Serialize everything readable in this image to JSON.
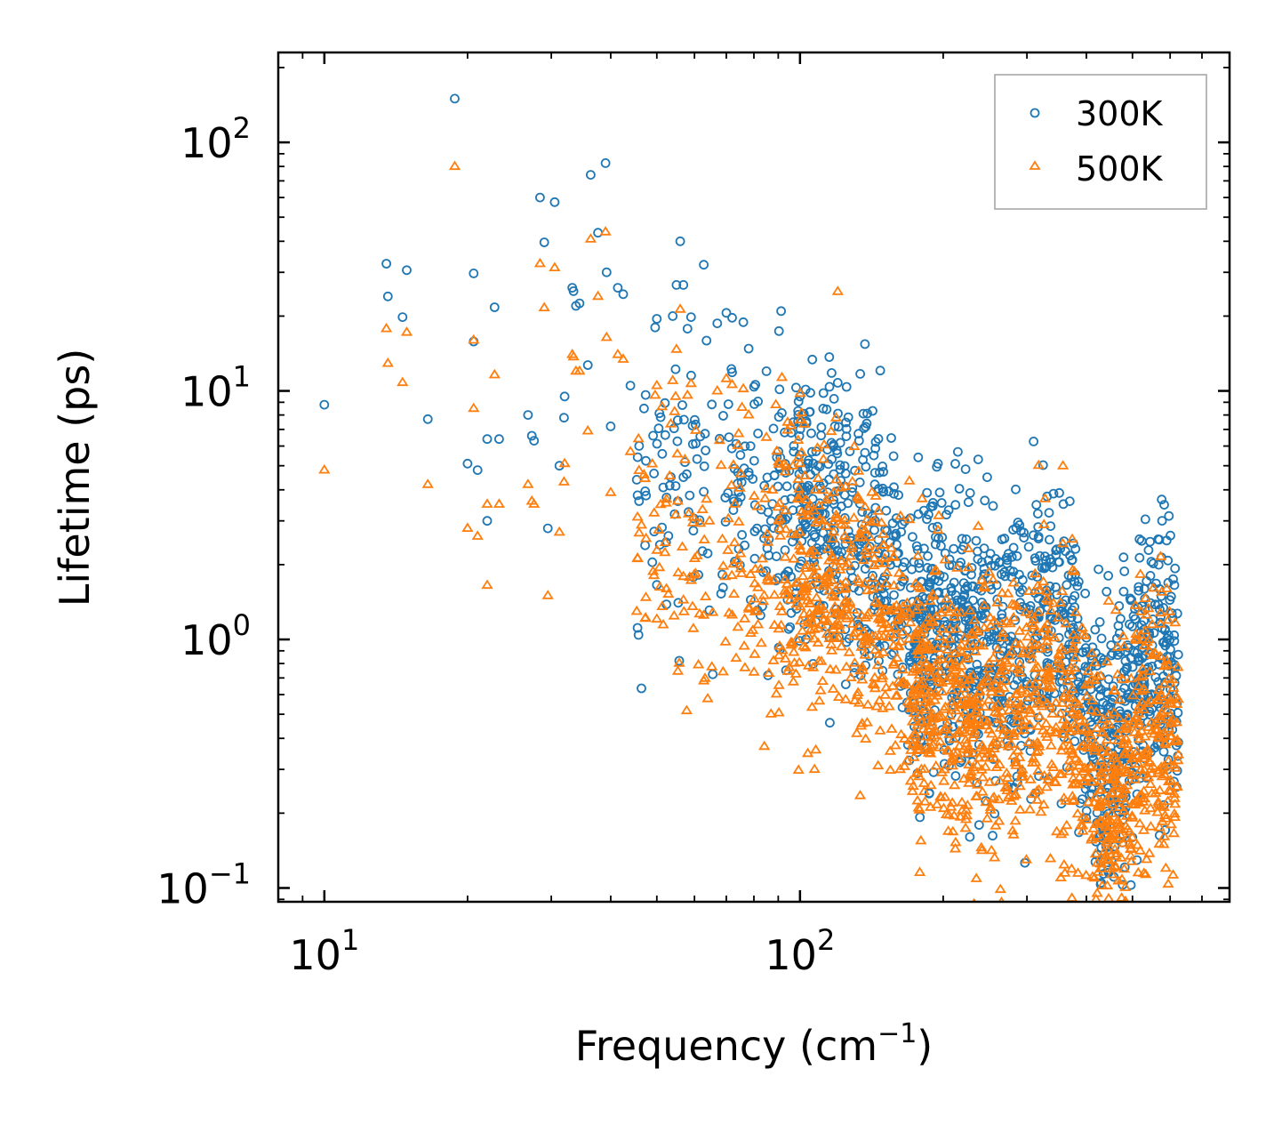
{
  "chart_data": {
    "type": "scatter",
    "title": "",
    "xlabel": "Frequency (cm",
    "xlabel_sup": "−1",
    "xlabel_tail": ")",
    "ylabel": "Lifetime (ps)",
    "xscale": "log",
    "yscale": "log",
    "xlim": [
      8.0,
      800
    ],
    "ylim": [
      0.088,
      230
    ],
    "x_ticks": [
      {
        "base": "10",
        "exp": "1",
        "value": 10
      },
      {
        "base": "10",
        "exp": "2",
        "value": 100
      }
    ],
    "y_ticks": [
      {
        "base": "10",
        "exp": "−1",
        "value": 0.1
      },
      {
        "base": "10",
        "exp": "0",
        "value": 1
      },
      {
        "base": "10",
        "exp": "1",
        "value": 10
      },
      {
        "base": "10",
        "exp": "2",
        "value": 100
      }
    ],
    "legend_position": "top-right",
    "series": [
      {
        "name": "300K",
        "marker": "circle",
        "color": "#1f77b4",
        "labeled_points": [
          [
            10.0,
            8.8
          ],
          [
            13.5,
            32.5
          ],
          [
            13.6,
            24.0
          ],
          [
            14.6,
            19.8
          ],
          [
            14.9,
            30.6
          ],
          [
            16.5,
            7.7
          ],
          [
            18.8,
            150.0
          ],
          [
            20.0,
            5.1
          ],
          [
            20.6,
            29.7
          ],
          [
            20.6,
            15.8
          ],
          [
            21.0,
            4.8
          ],
          [
            22.0,
            3.0
          ],
          [
            22.0,
            6.4
          ],
          [
            22.8,
            21.7
          ],
          [
            23.3,
            6.4
          ],
          [
            26.8,
            8.0
          ],
          [
            27.3,
            6.6
          ],
          [
            27.6,
            6.3
          ],
          [
            28.4,
            60.0
          ],
          [
            29.0,
            39.6
          ],
          [
            29.5,
            2.8
          ],
          [
            30.5,
            57.5
          ],
          [
            31.2,
            5.0
          ],
          [
            31.9,
            7.8
          ],
          [
            32.0,
            9.5
          ],
          [
            33.2,
            26.0
          ],
          [
            33.4,
            25.2
          ],
          [
            33.8,
            22.0
          ],
          [
            34.4,
            22.5
          ],
          [
            35.8,
            12.7
          ],
          [
            36.3,
            74.0
          ],
          [
            37.6,
            43.3
          ],
          [
            39.0,
            82.5
          ],
          [
            39.2,
            30.0
          ],
          [
            40.0,
            7.2
          ],
          [
            41.4,
            26.0
          ],
          [
            42.5,
            24.5
          ],
          [
            44.0,
            10.5
          ],
          [
            47.0,
            8.5
          ],
          [
            49.6,
            18.0
          ],
          [
            50.0,
            19.5
          ],
          [
            54.0,
            20.0
          ],
          [
            55.0,
            26.7
          ],
          [
            56.0,
            40.0
          ],
          [
            58.0,
            17.8
          ],
          [
            59.0,
            19.8
          ],
          [
            67.0,
            18.7
          ],
          [
            70.0,
            20.6
          ],
          [
            72.0,
            19.7
          ],
          [
            76.0,
            18.9
          ],
          [
            78.0,
            14.8
          ],
          [
            85.0,
            12.0
          ],
          [
            100.0,
            9.5
          ],
          [
            112.0,
            9.8
          ],
          [
            195.0,
            5.1
          ],
          [
            237.0,
            5.3
          ],
          [
            590.0,
            2.5
          ]
        ]
      },
      {
        "name": "500K",
        "marker": "triangle",
        "color": "#ff7f0e",
        "labeled_points": [
          [
            10.0,
            4.8
          ],
          [
            13.5,
            17.8
          ],
          [
            13.6,
            12.9
          ],
          [
            14.6,
            10.8
          ],
          [
            14.9,
            17.2
          ],
          [
            16.5,
            4.2
          ],
          [
            18.8,
            80.0
          ],
          [
            20.0,
            2.8
          ],
          [
            20.6,
            16.0
          ],
          [
            20.6,
            8.5
          ],
          [
            21.0,
            2.6
          ],
          [
            22.0,
            1.65
          ],
          [
            22.0,
            3.5
          ],
          [
            22.8,
            11.6
          ],
          [
            23.3,
            3.5
          ],
          [
            26.8,
            4.2
          ],
          [
            27.3,
            3.6
          ],
          [
            27.6,
            3.5
          ],
          [
            28.4,
            32.5
          ],
          [
            29.0,
            21.6
          ],
          [
            29.5,
            1.5
          ],
          [
            30.5,
            31.3
          ],
          [
            31.2,
            2.7
          ],
          [
            31.9,
            4.3
          ],
          [
            32.0,
            5.1
          ],
          [
            33.2,
            14.0
          ],
          [
            33.4,
            13.7
          ],
          [
            33.8,
            12.0
          ],
          [
            34.4,
            12.0
          ],
          [
            35.8,
            6.9
          ],
          [
            36.3,
            40.8
          ],
          [
            37.6,
            24.0
          ],
          [
            39.0,
            43.6
          ],
          [
            39.2,
            16.4
          ],
          [
            40.0,
            3.9
          ],
          [
            41.4,
            14.0
          ],
          [
            42.5,
            13.4
          ],
          [
            44.0,
            5.7
          ],
          [
            47.0,
            4.6
          ],
          [
            49.6,
            9.6
          ],
          [
            50.0,
            10.5
          ],
          [
            54.0,
            11.0
          ],
          [
            55.0,
            14.7
          ],
          [
            56.0,
            21.3
          ],
          [
            58.0,
            9.6
          ],
          [
            59.0,
            10.7
          ],
          [
            67.0,
            10.0
          ],
          [
            70.0,
            11.2
          ],
          [
            72.0,
            10.6
          ],
          [
            76.0,
            10.2
          ],
          [
            78.0,
            8.0
          ],
          [
            85.0,
            6.5
          ],
          [
            100.0,
            5.1
          ],
          [
            112.0,
            5.3
          ],
          [
            195.0,
            2.75
          ],
          [
            237.0,
            2.85
          ],
          [
            590.0,
            1.6
          ],
          [
            430.0,
            0.125
          ]
        ]
      }
    ],
    "dense_band": {
      "note": "Thousands of phonon modes form dense clouds; generated procedurally from this envelope (frequency, 300K center lifetime, 500K center lifetime)",
      "envelope": [
        [
          45,
          4.5,
          2.3
        ],
        [
          70,
          4.0,
          2.0
        ],
        [
          100,
          3.5,
          1.8
        ],
        [
          130,
          3.0,
          1.5
        ],
        [
          150,
          2.2,
          1.2
        ],
        [
          175,
          0.9,
          0.55
        ],
        [
          195,
          1.2,
          0.6
        ],
        [
          230,
          1.0,
          0.5
        ],
        [
          280,
          0.9,
          0.45
        ],
        [
          330,
          1.3,
          0.65
        ],
        [
          380,
          0.8,
          0.4
        ],
        [
          425,
          0.35,
          0.2
        ],
        [
          470,
          0.38,
          0.22
        ],
        [
          540,
          0.9,
          0.45
        ],
        [
          620,
          0.7,
          0.35
        ]
      ]
    }
  }
}
